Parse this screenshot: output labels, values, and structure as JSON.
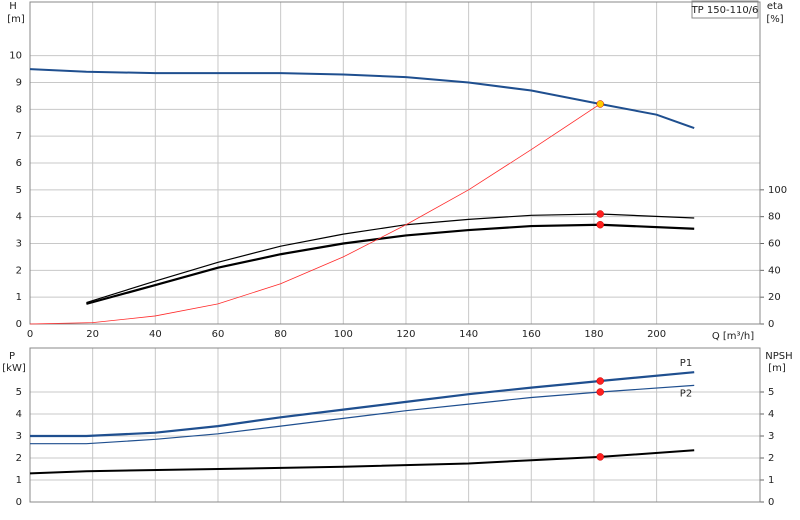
{
  "chart_data": [
    {
      "type": "line",
      "title": "TP 150-110/6",
      "y_label": "H",
      "y_unit": "[m]",
      "y2_label": "eta",
      "y2_unit": "[%]",
      "x_label": "Q [m³/h]",
      "xlim": [
        0,
        233
      ],
      "xticks": [
        0,
        20,
        40,
        60,
        80,
        100,
        120,
        140,
        160,
        180,
        200
      ],
      "ylim": [
        0,
        12
      ],
      "yticks": [
        0,
        1,
        2,
        3,
        4,
        5,
        6,
        7,
        8,
        9,
        10
      ],
      "y2lim": [
        0,
        240
      ],
      "y2ticks": [
        0,
        20,
        40,
        60,
        80,
        100
      ],
      "grid": true,
      "series": [
        {
          "color": "#1f4f8f",
          "x": [
            0,
            18,
            40,
            80,
            100,
            120,
            140,
            160,
            182,
            200,
            212
          ],
          "values": [
            9.5,
            9.4,
            9.35,
            9.35,
            9.3,
            9.2,
            9.0,
            8.7,
            8.2,
            7.8,
            7.3
          ]
        },
        {
          "color": "#000000",
          "axis": "y2",
          "x": [
            18,
            40,
            60,
            80,
            100,
            120,
            140,
            160,
            182,
            212
          ],
          "values": [
            16,
            32,
            46,
            58,
            67,
            74,
            78,
            81,
            82,
            79
          ]
        },
        {
          "color": "#000000",
          "axis": "y2",
          "x": [
            18,
            40,
            60,
            80,
            100,
            120,
            140,
            160,
            182,
            212
          ],
          "values": [
            15,
            29,
            42,
            52,
            60,
            66,
            70,
            73,
            74,
            71
          ]
        },
        {
          "color": "#ff2a2a",
          "x": [
            0,
            20,
            40,
            60,
            80,
            100,
            120,
            140,
            160,
            182
          ],
          "values": [
            0,
            0.05,
            0.3,
            0.75,
            1.5,
            2.5,
            3.7,
            5.0,
            6.5,
            8.2
          ]
        },
        {
          "type": "scatter",
          "color": "#ffcc00",
          "x": [
            182
          ],
          "values": [
            8.2
          ]
        },
        {
          "type": "scatter",
          "color": "#ff2020",
          "axis": "y2",
          "x": [
            182,
            182
          ],
          "values": [
            82,
            74
          ]
        }
      ]
    },
    {
      "type": "line",
      "y_label": "P",
      "y_unit": "[kW]",
      "y2_label": "NPSH",
      "y2_unit": "[m]",
      "xlim": [
        0,
        233
      ],
      "xgrid": [
        0,
        20,
        40,
        60,
        80,
        100,
        120,
        140,
        160,
        180,
        200
      ],
      "ylim": [
        0,
        7
      ],
      "yticks": [
        0,
        1,
        2,
        3,
        4,
        5
      ],
      "y2lim": [
        0,
        7
      ],
      "y2ticks": [
        0,
        1,
        2,
        3,
        4,
        5
      ],
      "grid": true,
      "series": [
        {
          "name": "P1",
          "color": "#1f4f8f",
          "x": [
            0,
            18,
            40,
            60,
            80,
            100,
            120,
            140,
            160,
            182,
            212
          ],
          "values": [
            3.0,
            3.0,
            3.15,
            3.45,
            3.85,
            4.2,
            4.55,
            4.9,
            5.2,
            5.5,
            5.9
          ]
        },
        {
          "name": "P2",
          "color": "#1f4f8f",
          "x": [
            0,
            18,
            40,
            60,
            80,
            100,
            120,
            140,
            160,
            182,
            212
          ],
          "values": [
            2.65,
            2.65,
            2.85,
            3.1,
            3.45,
            3.8,
            4.15,
            4.45,
            4.75,
            5.0,
            5.3
          ]
        },
        {
          "color": "#000000",
          "axis": "y2",
          "x": [
            0,
            18,
            60,
            100,
            140,
            160,
            182,
            212
          ],
          "values": [
            1.3,
            1.4,
            1.5,
            1.6,
            1.75,
            1.9,
            2.05,
            2.35
          ]
        },
        {
          "type": "scatter",
          "color": "#ff2020",
          "x": [
            182,
            182
          ],
          "values": [
            5.5,
            5.0
          ]
        },
        {
          "type": "scatter",
          "color": "#ff2020",
          "axis": "y2",
          "x": [
            182
          ],
          "values": [
            2.05
          ]
        }
      ]
    }
  ]
}
